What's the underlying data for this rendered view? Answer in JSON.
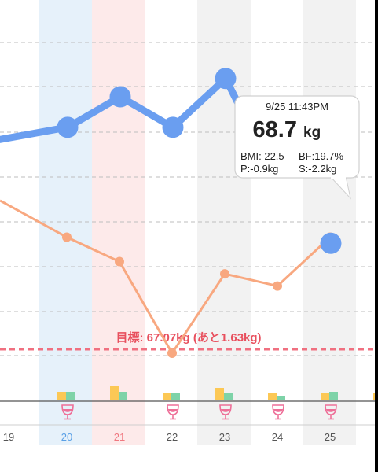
{
  "chart_data": {
    "type": "line",
    "categories": [
      "19",
      "20",
      "21",
      "22",
      "23",
      "24",
      "25"
    ],
    "series": [
      {
        "values": [
          null,
          70.6,
          71.1,
          70.6,
          71.4,
          null,
          68.7
        ],
        "color": "#6a9ef0"
      },
      {
        "values": [
          null,
          68.8,
          68.4,
          66.9,
          68.2,
          68.0,
          68.8
        ],
        "color": "#f8a880"
      }
    ],
    "series_edge": {
      "blue_left": 70.4,
      "orange_left": 69.4
    },
    "tooltip_blue_segment_end": 70.3,
    "goal": {
      "value": 67.07,
      "label": "目標: 67.07kg (あと1.63kg)",
      "color": "#f07080"
    },
    "bars": [
      {
        "day": "20",
        "yellow": 0.45,
        "green": 0.45
      },
      {
        "day": "21",
        "yellow": 0.7,
        "green": 0.45
      },
      {
        "day": "22",
        "yellow": 0.4,
        "green": 0.4
      },
      {
        "day": "23",
        "yellow": 0.65,
        "green": 0.4
      },
      {
        "day": "24",
        "yellow": 0.4,
        "green": 0.2
      },
      {
        "day": "25",
        "yellow": 0.4,
        "green": 0.45
      },
      {
        "day": "26",
        "yellow": 0.4,
        "green": 0.2
      }
    ],
    "drink_days": [
      "20",
      "22",
      "23",
      "24",
      "25"
    ],
    "highlight_columns": [
      {
        "day": "20",
        "color": "#e6f1fa"
      },
      {
        "day": "21",
        "color": "#fdeaea"
      },
      {
        "day": "23",
        "color": "#f2f2f2"
      },
      {
        "day": "25",
        "color": "#f2f2f2"
      }
    ],
    "day_label_colors": {
      "20": "#5aa0e6",
      "21": "#f07880",
      "default": "#555555"
    },
    "colors": {
      "bar_yellow": "#fcc855",
      "bar_green": "#7ed3a8",
      "drink_icon": "#ee6f98",
      "gridline": "#bdbdbd"
    }
  },
  "tooltip": {
    "datetime": "9/25 11:43PM",
    "weight_value": "68.7",
    "weight_unit": "kg",
    "bmi": "BMI: 22.5",
    "bf": "BF:19.7%",
    "p": "P:-0.9kg",
    "s": "S:-2.2kg"
  }
}
